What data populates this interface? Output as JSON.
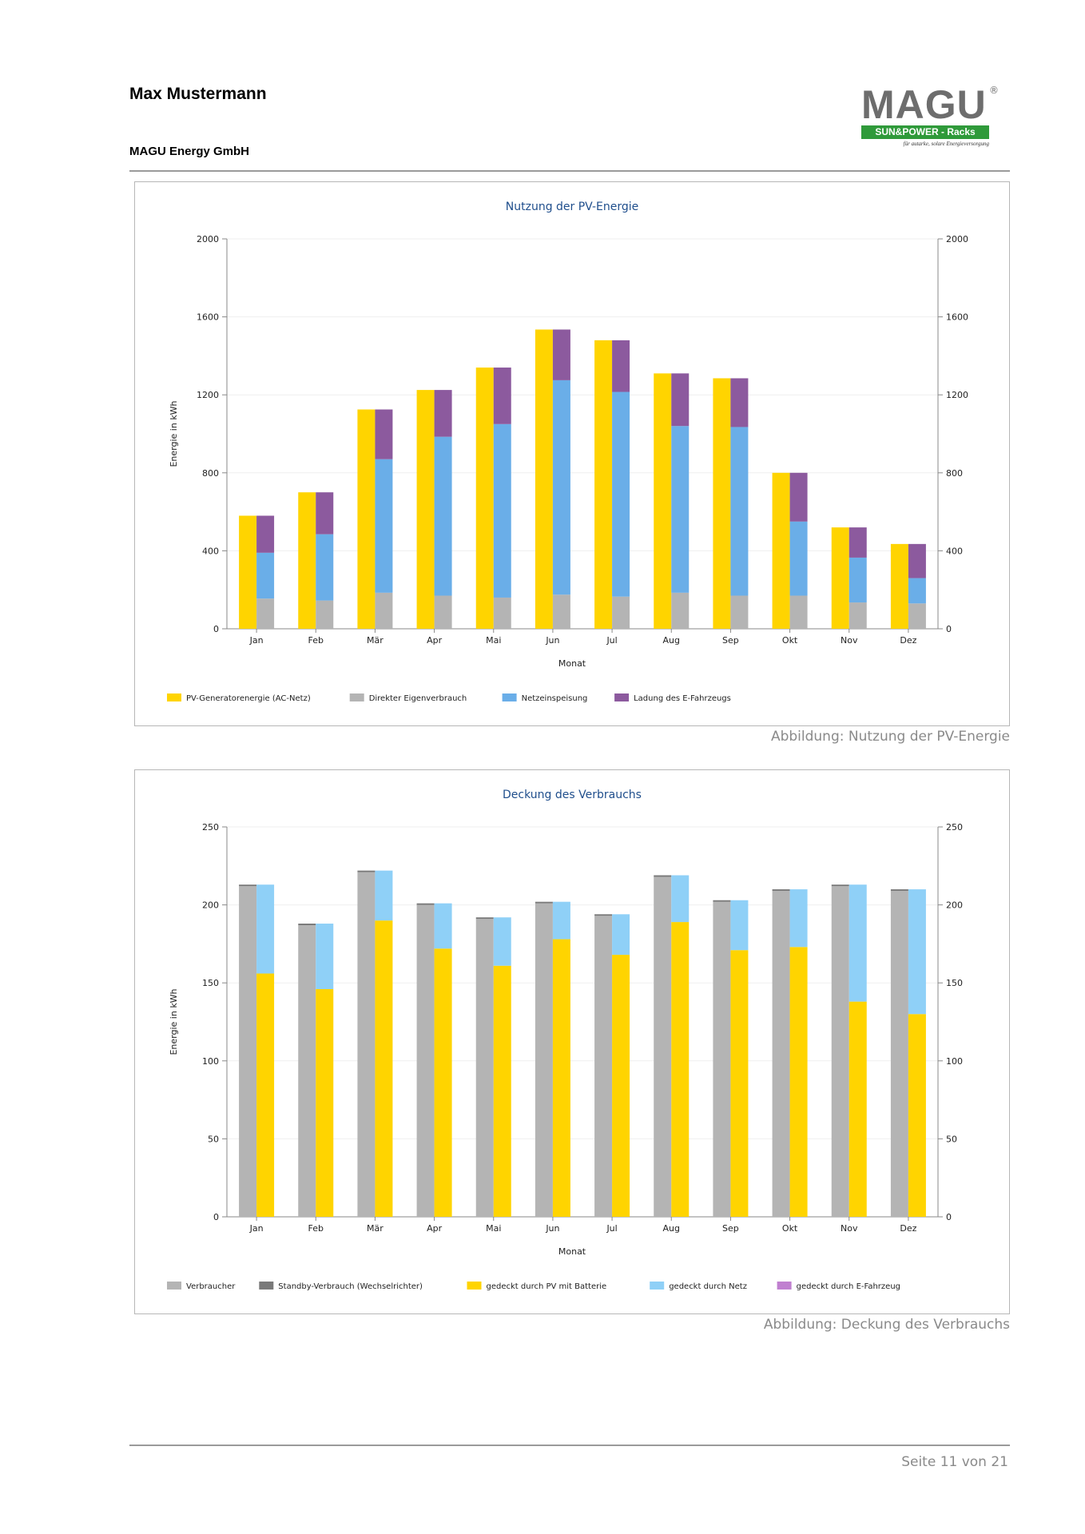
{
  "header": {
    "name": "Max Mustermann",
    "company": "MAGU Energy GmbH",
    "logo": {
      "text": "MAGU",
      "registered": "®",
      "band": "SUN&POWER - Racks",
      "tagline": "für autarke, solare Energieversorgung"
    }
  },
  "captions": {
    "chart1": "Abbildung: Nutzung der PV-Energie",
    "chart2": "Abbildung: Deckung des Verbrauchs"
  },
  "footer": {
    "page": "Seite 11 von 21"
  },
  "colors": {
    "yellow": "#ffd400",
    "gray": "#b4b4b4",
    "darkgray": "#7a7a7a",
    "blue": "#6aaee8",
    "lightblue": "#8fd0f7",
    "purple": "#8c5a9e",
    "lightpurple": "#c080d0",
    "title": "#1f4e8c"
  },
  "chart_data": [
    {
      "type": "bar",
      "title": "Nutzung der PV-Energie",
      "xlabel": "Monat",
      "ylabel": "Energie in kWh",
      "ylim": [
        0,
        2000
      ],
      "yticks": [
        0,
        400,
        800,
        1200,
        1600,
        2000
      ],
      "categories": [
        "Jan",
        "Feb",
        "Mär",
        "Apr",
        "Mai",
        "Jun",
        "Jul",
        "Aug",
        "Sep",
        "Okt",
        "Nov",
        "Dez"
      ],
      "legend_position": "bottom-left",
      "series": [
        {
          "name": "PV-Generatorenergie (AC-Netz)",
          "color": "#ffd400",
          "stack": "a",
          "values": [
            580,
            700,
            1125,
            1225,
            1340,
            1535,
            1480,
            1310,
            1285,
            800,
            520,
            435
          ]
        },
        {
          "name": "Direkter Eigenverbrauch",
          "color": "#b4b4b4",
          "stack": "b",
          "values": [
            155,
            145,
            185,
            170,
            160,
            175,
            165,
            185,
            170,
            170,
            135,
            130
          ]
        },
        {
          "name": "Netzeinspeisung",
          "color": "#6aaee8",
          "stack": "b",
          "values": [
            235,
            340,
            685,
            815,
            890,
            1100,
            1050,
            855,
            865,
            380,
            230,
            130
          ]
        },
        {
          "name": "Ladung des E-Fahrzeugs",
          "color": "#8c5a9e",
          "stack": "b",
          "values": [
            190,
            215,
            255,
            240,
            290,
            260,
            265,
            270,
            250,
            250,
            155,
            175
          ]
        }
      ]
    },
    {
      "type": "bar",
      "title": "Deckung des Verbrauchs",
      "xlabel": "Monat",
      "ylabel": "Energie in kWh",
      "ylim": [
        0,
        250
      ],
      "yticks": [
        0,
        50,
        100,
        150,
        200,
        250
      ],
      "categories": [
        "Jan",
        "Feb",
        "Mär",
        "Apr",
        "Mai",
        "Jun",
        "Jul",
        "Aug",
        "Sep",
        "Okt",
        "Nov",
        "Dez"
      ],
      "legend_position": "bottom-left",
      "series": [
        {
          "name": "Verbraucher",
          "color": "#b4b4b4",
          "stack": "a",
          "values": [
            212,
            187,
            221,
            200,
            191,
            201,
            193,
            218,
            202,
            209,
            212,
            209
          ]
        },
        {
          "name": "Standby-Verbrauch (Wechselrichter)",
          "color": "#7a7a7a",
          "stack": "a",
          "values": [
            1,
            1,
            1,
            1,
            1,
            1,
            1,
            1,
            1,
            1,
            1,
            1
          ]
        },
        {
          "name": "gedeckt durch PV mit Batterie",
          "color": "#ffd400",
          "stack": "b",
          "values": [
            156,
            146,
            190,
            172,
            161,
            178,
            168,
            189,
            171,
            173,
            138,
            130
          ]
        },
        {
          "name": "gedeckt durch Netz",
          "color": "#8fd0f7",
          "stack": "b",
          "values": [
            57,
            42,
            32,
            29,
            31,
            24,
            26,
            30,
            32,
            37,
            75,
            80
          ]
        },
        {
          "name": "gedeckt durch E-Fahrzeug",
          "color": "#c080d0",
          "stack": "b",
          "values": [
            0,
            0,
            0,
            0,
            0,
            0,
            0,
            0,
            0,
            0,
            0,
            0
          ]
        }
      ]
    }
  ]
}
